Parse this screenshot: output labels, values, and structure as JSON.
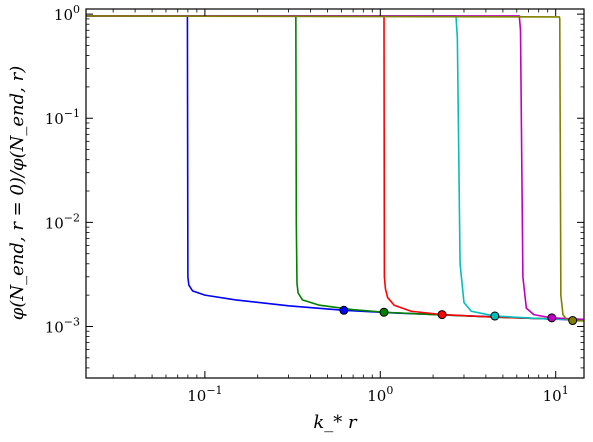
{
  "chart_data": {
    "type": "line",
    "title": "",
    "xlabel": "k_* r",
    "ylabel": "φ(N_end, r = 0)/φ(N_end, r)",
    "xscale": "log",
    "yscale": "log",
    "xlim": [
      0.021,
      14.5
    ],
    "ylim": [
      0.00032,
      1.12
    ],
    "grid": false,
    "x_ticks": [
      {
        "value": 0.1,
        "base": "10",
        "exp": "−1"
      },
      {
        "value": 1,
        "base": "10",
        "exp": "0"
      },
      {
        "value": 10,
        "base": "10",
        "exp": "1"
      }
    ],
    "y_ticks": [
      {
        "value": 0.001,
        "base": "10",
        "exp": "−3"
      },
      {
        "value": 0.01,
        "base": "10",
        "exp": "−2"
      },
      {
        "value": 0.1,
        "base": "10",
        "exp": "−1"
      },
      {
        "value": 1,
        "base": "10",
        "exp": "0"
      }
    ],
    "series": [
      {
        "color": "#0000ff",
        "x": [
          0.021,
          0.0795,
          0.0797,
          0.08,
          0.081,
          0.085,
          0.1,
          0.15,
          0.3,
          0.62,
          1.2,
          3,
          8,
          14.5
        ],
        "y": [
          0.96,
          0.96,
          0.08,
          0.003,
          0.0025,
          0.0022,
          0.002,
          0.0018,
          0.00158,
          0.00143,
          0.00135,
          0.00127,
          0.00119,
          0.00115
        ],
        "marker": {
          "x": 0.62,
          "y": 0.00143
        }
      },
      {
        "color": "#008000",
        "x": [
          0.021,
          0.33,
          0.332,
          0.335,
          0.34,
          0.36,
          0.45,
          0.7,
          1.05,
          2,
          5,
          14.5
        ],
        "y": [
          0.96,
          0.96,
          0.01,
          0.0026,
          0.0021,
          0.0018,
          0.0016,
          0.00145,
          0.00137,
          0.0013,
          0.00122,
          0.00116
        ],
        "marker": {
          "x": 1.05,
          "y": 0.00137
        }
      },
      {
        "color": "#ff0000",
        "x": [
          0.021,
          1.05,
          1.055,
          1.07,
          1.1,
          1.2,
          1.5,
          2.25,
          4,
          8,
          14.5
        ],
        "y": [
          0.96,
          0.96,
          0.003,
          0.0023,
          0.0019,
          0.0016,
          0.0014,
          0.0013,
          0.00124,
          0.00119,
          0.00116
        ],
        "marker": {
          "x": 2.25,
          "y": 0.0013
        }
      },
      {
        "color": "#00bfbf",
        "x": [
          0.021,
          2.7,
          2.75,
          2.85,
          3,
          3.3,
          4.5,
          8,
          14.5
        ],
        "y": [
          0.96,
          0.96,
          0.6,
          0.004,
          0.0017,
          0.0014,
          0.00126,
          0.00119,
          0.00116
        ],
        "marker": {
          "x": 4.5,
          "y": 0.00126
        }
      },
      {
        "color": "#bf00bf",
        "x": [
          0.021,
          6.2,
          6.3,
          6.5,
          6.8,
          7.5,
          9.5,
          14.5
        ],
        "y": [
          0.96,
          0.96,
          0.7,
          0.003,
          0.0015,
          0.0013,
          0.00121,
          0.00117
        ],
        "marker": {
          "x": 9.5,
          "y": 0.00121
        }
      },
      {
        "color": "#808000",
        "x": [
          0.021,
          10.5,
          10.55,
          10.7,
          11,
          11.5,
          12.5,
          14.5
        ],
        "y": [
          0.96,
          0.94,
          0.9,
          0.002,
          0.0013,
          0.00118,
          0.00114,
          0.00113
        ],
        "marker": {
          "x": 12.5,
          "y": 0.00114
        }
      }
    ]
  }
}
